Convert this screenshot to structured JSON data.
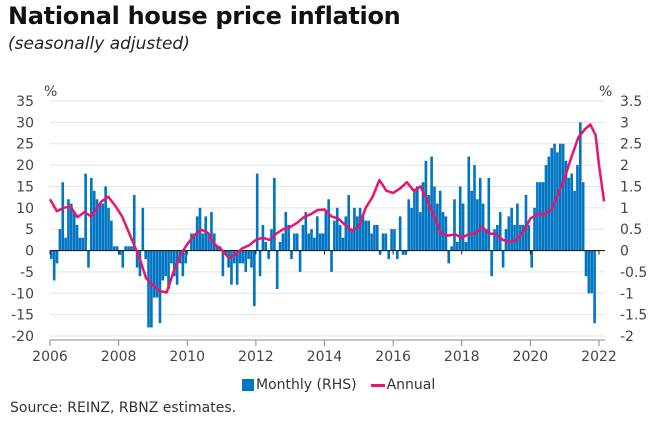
{
  "header": {
    "title": "National house price inflation",
    "subtitle": "(seasonally adjusted)"
  },
  "source": "Source: REINZ, RBNZ estimates.",
  "colors": {
    "monthly": "#0075c2",
    "annual": "#e8146e",
    "grid": "#e3e3e3",
    "axis": "#222222"
  },
  "chart_data": {
    "type": "bar+line",
    "title": "National house price inflation",
    "subtitle": "(seasonally adjusted)",
    "left_axis": {
      "unit": "%",
      "range": [
        -20,
        35
      ],
      "ticks": [
        "35",
        "30",
        "25",
        "20",
        "15",
        "10",
        "5",
        "0",
        "-5",
        "-10",
        "-15",
        "-20"
      ]
    },
    "right_axis": {
      "unit": "%",
      "range": [
        -2,
        3.5
      ],
      "ticks": [
        "3.5",
        "3",
        "2.5",
        "2",
        "1.5",
        "1",
        "0.5",
        "0",
        "-0.5",
        "-1",
        "-1.5",
        "-2"
      ]
    },
    "x_axis": {
      "range": [
        2006,
        2022.2
      ],
      "ticks": [
        "2006",
        "2008",
        "2010",
        "2012",
        "2014",
        "2016",
        "2018",
        "2020",
        "2022"
      ]
    },
    "grid": true,
    "legend": {
      "placement": "bottom",
      "entries": [
        {
          "name": "Monthly (RHS)",
          "type": "bar"
        },
        {
          "name": "Annual",
          "type": "line"
        }
      ]
    },
    "series": [
      {
        "name": "Monthly (RHS)",
        "axis": "right",
        "start": 2006.0,
        "step_months": 1,
        "values": [
          -0.2,
          -0.7,
          -0.3,
          0.5,
          1.6,
          0.3,
          1.2,
          1.1,
          0.9,
          0.6,
          0.3,
          0.3,
          1.8,
          -0.4,
          1.7,
          1.4,
          1.2,
          1.1,
          1.1,
          1.5,
          1.0,
          0.7,
          0.1,
          0.1,
          -0.1,
          -0.4,
          0.1,
          0.1,
          0.1,
          1.3,
          -0.4,
          -0.6,
          1.0,
          -0.2,
          -1.8,
          -1.8,
          -1.1,
          -1.1,
          -1.7,
          -0.7,
          -0.6,
          -0.9,
          -0.3,
          -0.6,
          -0.8,
          -0.3,
          -0.6,
          -0.3,
          0.0,
          0.4,
          0.4,
          0.8,
          1.0,
          0.4,
          0.8,
          0.4,
          0.9,
          0.4,
          0.1,
          0.1,
          -0.6,
          -0.1,
          -0.4,
          -0.8,
          -0.3,
          -0.8,
          -0.3,
          -0.3,
          -0.5,
          -0.2,
          -0.4,
          -1.3,
          1.8,
          -0.6,
          0.6,
          0.2,
          -0.2,
          0.5,
          1.7,
          -0.9,
          0.2,
          0.4,
          0.9,
          0.6,
          -0.2,
          0.4,
          0.4,
          -0.5,
          0.6,
          0.9,
          0.4,
          0.5,
          0.3,
          0.8,
          0.4,
          0.4,
          0.9,
          1.2,
          -0.5,
          0.7,
          1.0,
          0.6,
          0.3,
          0.8,
          1.3,
          0.5,
          1.0,
          0.8,
          1.0,
          0.8,
          0.7,
          0.7,
          0.4,
          0.6,
          0.6,
          -0.1,
          0.4,
          0.4,
          -0.2,
          0.5,
          0.5,
          -0.2,
          0.8,
          -0.1,
          -0.1,
          1.2,
          1.0,
          1.4,
          1.5,
          0.9,
          1.6,
          2.1,
          1.3,
          2.2,
          1.5,
          1.1,
          1.4,
          0.9,
          0.8,
          -0.3,
          0.1,
          1.2,
          0.2,
          1.5,
          1.1,
          0.2,
          2.2,
          1.4,
          2.0,
          1.2,
          1.7,
          1.1,
          0.5,
          1.7,
          -0.6,
          0.5,
          0.2,
          0.9,
          0.5,
          0.4,
          0.8,
          0.1,
          -0.7,
          0.6,
          0.3,
          0.7,
          0.9,
          0.7,
          -0.3,
          0.5,
          0.9,
          0.5,
          0.6,
          0.2,
          0.7,
          -0.3,
          0.4,
          -0.9,
          0.3,
          0.8,
          0.8,
          0.3,
          0.4,
          -0.3,
          0.1
        ],
        "values_tail_2019_2022": [
          0.6,
          0.9,
          -0.4,
          0.5,
          0.8,
          1.0,
          0.6,
          1.1,
          0.6,
          0.6,
          1.3,
          0.6,
          -0.4,
          1.0,
          1.6,
          1.6,
          1.6,
          2.0,
          2.2,
          2.4,
          2.5,
          2.3,
          2.5,
          2.5,
          2.1,
          1.7,
          1.8,
          1.4,
          2.0,
          3.0,
          1.6,
          -0.6,
          -1.0,
          -1.0,
          -1.7
        ]
      },
      {
        "name": "Annual",
        "axis": "left",
        "points": [
          [
            2006.0,
            12.0
          ],
          [
            2006.2,
            9.2
          ],
          [
            2006.4,
            10.0
          ],
          [
            2006.6,
            10.3
          ],
          [
            2006.8,
            7.8
          ],
          [
            2007.0,
            9.0
          ],
          [
            2007.2,
            8.0
          ],
          [
            2007.5,
            11.5
          ],
          [
            2007.7,
            12.6
          ],
          [
            2007.9,
            10.5
          ],
          [
            2008.1,
            8.0
          ],
          [
            2008.3,
            4.2
          ],
          [
            2008.6,
            -1.5
          ],
          [
            2008.8,
            -6.5
          ],
          [
            2009.0,
            -8.0
          ],
          [
            2009.2,
            -9.5
          ],
          [
            2009.4,
            -9.8
          ],
          [
            2009.6,
            -5.0
          ],
          [
            2009.8,
            -1.0
          ],
          [
            2010.0,
            1.5
          ],
          [
            2010.2,
            3.5
          ],
          [
            2010.4,
            4.9
          ],
          [
            2010.6,
            4.2
          ],
          [
            2010.8,
            1.5
          ],
          [
            2011.0,
            0.2
          ],
          [
            2011.2,
            -1.6
          ],
          [
            2011.4,
            -1.0
          ],
          [
            2011.6,
            0.5
          ],
          [
            2011.8,
            1.2
          ],
          [
            2012.0,
            2.5
          ],
          [
            2012.2,
            3.0
          ],
          [
            2012.4,
            2.5
          ],
          [
            2012.6,
            4.0
          ],
          [
            2012.8,
            5.0
          ],
          [
            2013.0,
            5.5
          ],
          [
            2013.2,
            6.5
          ],
          [
            2013.4,
            7.8
          ],
          [
            2013.6,
            8.5
          ],
          [
            2013.8,
            9.5
          ],
          [
            2014.0,
            9.6
          ],
          [
            2014.2,
            8.0
          ],
          [
            2014.4,
            7.5
          ],
          [
            2014.6,
            6.0
          ],
          [
            2014.8,
            4.7
          ],
          [
            2015.0,
            5.5
          ],
          [
            2015.2,
            10.0
          ],
          [
            2015.4,
            12.5
          ],
          [
            2015.6,
            16.5
          ],
          [
            2015.8,
            14.0
          ],
          [
            2016.0,
            13.5
          ],
          [
            2016.2,
            14.5
          ],
          [
            2016.4,
            16.0
          ],
          [
            2016.6,
            14.0
          ],
          [
            2016.8,
            15.0
          ],
          [
            2017.0,
            11.5
          ],
          [
            2017.2,
            8.0
          ],
          [
            2017.4,
            4.0
          ],
          [
            2017.6,
            3.5
          ],
          [
            2017.8,
            3.8
          ],
          [
            2018.0,
            3.0
          ],
          [
            2018.2,
            3.8
          ],
          [
            2018.4,
            4.0
          ],
          [
            2018.6,
            5.5
          ],
          [
            2018.8,
            4.0
          ],
          [
            2019.0,
            3.8
          ],
          [
            2019.2,
            2.5
          ],
          [
            2019.4,
            2.0
          ],
          [
            2019.6,
            2.5
          ],
          [
            2019.8,
            4.5
          ],
          [
            2020.0,
            7.5
          ],
          [
            2020.2,
            8.5
          ],
          [
            2020.4,
            8.5
          ],
          [
            2020.6,
            9.5
          ],
          [
            2020.8,
            13.0
          ],
          [
            2021.0,
            17.0
          ],
          [
            2021.2,
            22.0
          ],
          [
            2021.4,
            26.5
          ],
          [
            2021.6,
            28.5
          ],
          [
            2021.75,
            29.5
          ],
          [
            2021.9,
            27.0
          ],
          [
            2022.0,
            20.0
          ],
          [
            2022.15,
            11.5
          ]
        ]
      }
    ]
  }
}
